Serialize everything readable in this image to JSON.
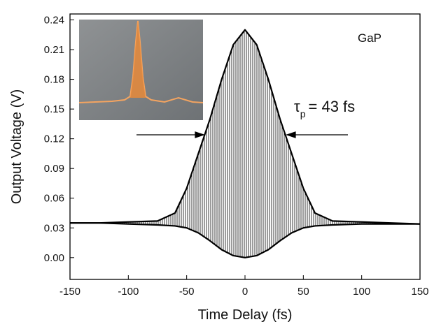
{
  "chart_data": {
    "type": "line",
    "x": [
      -150,
      -125,
      -100,
      -75,
      -60,
      -50,
      -40,
      -30,
      -20,
      -10,
      0,
      10,
      20,
      30,
      40,
      50,
      60,
      75,
      100,
      125,
      150
    ],
    "series": [
      {
        "color": "#000000",
        "values": [
          0.035,
          0.035,
          0.036,
          0.037,
          0.045,
          0.07,
          0.105,
          0.14,
          0.18,
          0.215,
          0.23,
          0.215,
          0.18,
          0.14,
          0.105,
          0.07,
          0.045,
          0.037,
          0.036,
          0.035,
          0.034
        ]
      },
      {
        "color": "#000000",
        "values": [
          0.035,
          0.035,
          0.034,
          0.033,
          0.032,
          0.03,
          0.025,
          0.017,
          0.008,
          0.002,
          0,
          0.002,
          0.008,
          0.017,
          0.025,
          0.03,
          0.032,
          0.033,
          0.034,
          0.034,
          0.034
        ]
      }
    ],
    "xlabel": "Time Delay (fs)",
    "ylabel": "Output Voltage (V)",
    "xlim": [
      -150,
      150
    ],
    "xticks": [
      -150,
      -100,
      -50,
      0,
      50,
      100,
      150
    ],
    "ylim": [
      -0.022,
      0.246
    ],
    "yticks": [
      {
        "value": 0,
        "label": "0.00"
      },
      0.03,
      0.06,
      0.09,
      0.12,
      0.15,
      0.18,
      0.21,
      0.24
    ],
    "annotations": {
      "material": "GaP",
      "pulse_symbol": "τ",
      "pulse_subscript": "p",
      "pulse_text": "= 43 fs"
    }
  }
}
